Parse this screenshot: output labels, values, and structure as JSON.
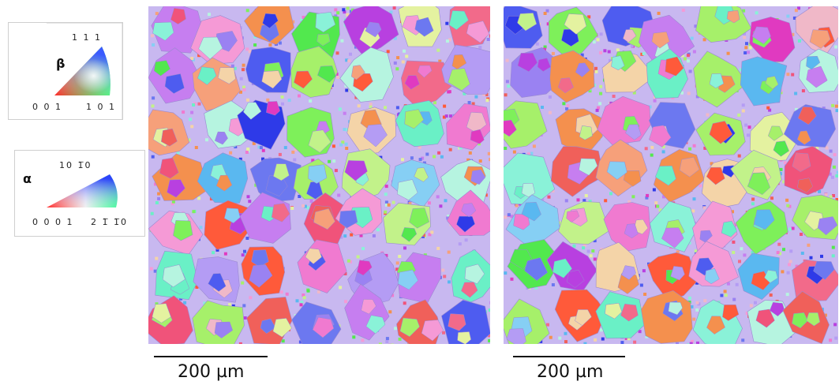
{
  "legend_beta": {
    "symbol": "β",
    "label_top": "1 1 1",
    "label_left": "0 0 1",
    "label_right": "1 0 1"
  },
  "legend_alpha": {
    "symbol": "α",
    "label_top": "10 1̅0",
    "label_left": "0 0 0 1",
    "label_right": "2 1̅ 1̅0"
  },
  "maps": [
    {
      "scale_label": "200 µm"
    },
    {
      "scale_label": "200 µm"
    }
  ],
  "colors": {
    "palette": [
      "#7ef05a",
      "#52e84e",
      "#a6f06a",
      "#f07ad0",
      "#f59ad6",
      "#c67ef0",
      "#9a82f2",
      "#b49cf4",
      "#6c78f0",
      "#4e5cf0",
      "#2e3ae8",
      "#f26a8a",
      "#f0537a",
      "#f0605a",
      "#f4904e",
      "#f6a07a",
      "#6af0c6",
      "#8af2d8",
      "#b6f4e0",
      "#5ab8f0",
      "#86cff4",
      "#c2f28a",
      "#e4f2a0",
      "#f0b8c8",
      "#f4d4a8",
      "#e03ac0",
      "#b840e0",
      "#ff5a3a"
    ]
  }
}
